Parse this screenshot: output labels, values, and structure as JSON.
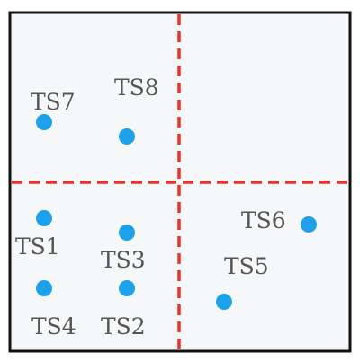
{
  "diagram": {
    "colors": {
      "background": "#f5f7f9",
      "frame": "#111111",
      "divider": "#e8332a",
      "point": "#1ea1ea",
      "label": "#555555"
    },
    "divider_style": "dashed",
    "points": [
      {
        "label": "TS1"
      },
      {
        "label": "TS2"
      },
      {
        "label": "TS3"
      },
      {
        "label": "TS4"
      },
      {
        "label": "TS5"
      },
      {
        "label": "TS6"
      },
      {
        "label": "TS7"
      },
      {
        "label": "TS8"
      }
    ]
  }
}
